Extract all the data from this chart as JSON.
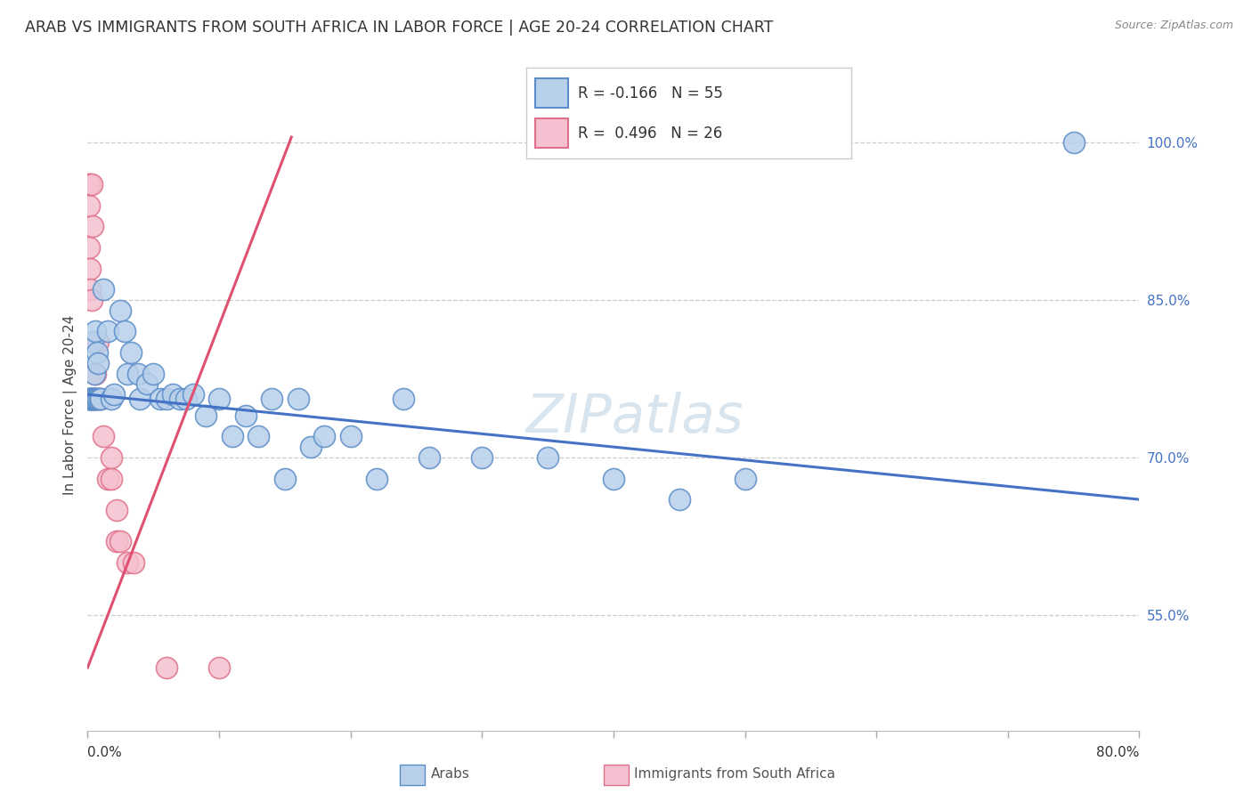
{
  "title": "ARAB VS IMMIGRANTS FROM SOUTH AFRICA IN LABOR FORCE | AGE 20-24 CORRELATION CHART",
  "source": "Source: ZipAtlas.com",
  "ylabel": "In Labor Force | Age 20-24",
  "y_ticks_right": [
    1.0,
    0.85,
    0.7,
    0.55
  ],
  "y_ticks_right_labels": [
    "100.0%",
    "85.0%",
    "70.0%",
    "55.0%"
  ],
  "xlim": [
    0.0,
    0.8
  ],
  "ylim": [
    0.44,
    1.06
  ],
  "legend_blue_r": "-0.166",
  "legend_blue_n": "55",
  "legend_pink_r": "0.496",
  "legend_pink_n": "26",
  "legend_label_blue": "Arabs",
  "legend_label_pink": "Immigrants from South Africa",
  "watermark": "ZIPatlas",
  "blue_fill": "#b8d0ea",
  "pink_fill": "#f5c0cf",
  "blue_edge": "#5b8dc8",
  "pink_edge": "#e0708a",
  "blue_line": "#4472c4",
  "pink_line": "#e05070",
  "blue_dots": [
    [
      0.001,
      0.756
    ],
    [
      0.001,
      0.756
    ],
    [
      0.002,
      0.756
    ],
    [
      0.002,
      0.756
    ],
    [
      0.003,
      0.756
    ],
    [
      0.003,
      0.756
    ],
    [
      0.004,
      0.756
    ],
    [
      0.004,
      0.81
    ],
    [
      0.005,
      0.756
    ],
    [
      0.005,
      0.78
    ],
    [
      0.006,
      0.756
    ],
    [
      0.006,
      0.82
    ],
    [
      0.007,
      0.756
    ],
    [
      0.007,
      0.8
    ],
    [
      0.008,
      0.756
    ],
    [
      0.008,
      0.79
    ],
    [
      0.009,
      0.756
    ],
    [
      0.01,
      0.756
    ],
    [
      0.012,
      0.86
    ],
    [
      0.015,
      0.82
    ],
    [
      0.018,
      0.756
    ],
    [
      0.02,
      0.76
    ],
    [
      0.025,
      0.84
    ],
    [
      0.028,
      0.82
    ],
    [
      0.03,
      0.78
    ],
    [
      0.033,
      0.8
    ],
    [
      0.038,
      0.78
    ],
    [
      0.04,
      0.756
    ],
    [
      0.045,
      0.77
    ],
    [
      0.05,
      0.78
    ],
    [
      0.055,
      0.756
    ],
    [
      0.06,
      0.756
    ],
    [
      0.065,
      0.76
    ],
    [
      0.07,
      0.756
    ],
    [
      0.075,
      0.756
    ],
    [
      0.08,
      0.76
    ],
    [
      0.09,
      0.74
    ],
    [
      0.1,
      0.756
    ],
    [
      0.11,
      0.72
    ],
    [
      0.12,
      0.74
    ],
    [
      0.13,
      0.72
    ],
    [
      0.14,
      0.756
    ],
    [
      0.15,
      0.68
    ],
    [
      0.16,
      0.756
    ],
    [
      0.17,
      0.71
    ],
    [
      0.18,
      0.72
    ],
    [
      0.2,
      0.72
    ],
    [
      0.22,
      0.68
    ],
    [
      0.24,
      0.756
    ],
    [
      0.26,
      0.7
    ],
    [
      0.3,
      0.7
    ],
    [
      0.35,
      0.7
    ],
    [
      0.4,
      0.68
    ],
    [
      0.45,
      0.66
    ],
    [
      0.5,
      0.68
    ],
    [
      0.75,
      1.0
    ]
  ],
  "pink_dots": [
    [
      0.001,
      0.96
    ],
    [
      0.001,
      0.94
    ],
    [
      0.001,
      0.9
    ],
    [
      0.002,
      0.96
    ],
    [
      0.002,
      0.88
    ],
    [
      0.002,
      0.86
    ],
    [
      0.003,
      0.96
    ],
    [
      0.003,
      0.85
    ],
    [
      0.004,
      0.92
    ],
    [
      0.005,
      0.756
    ],
    [
      0.005,
      0.756
    ],
    [
      0.006,
      0.78
    ],
    [
      0.006,
      0.756
    ],
    [
      0.008,
      0.81
    ],
    [
      0.01,
      0.756
    ],
    [
      0.012,
      0.72
    ],
    [
      0.015,
      0.68
    ],
    [
      0.018,
      0.7
    ],
    [
      0.018,
      0.68
    ],
    [
      0.022,
      0.62
    ],
    [
      0.022,
      0.65
    ],
    [
      0.025,
      0.62
    ],
    [
      0.03,
      0.6
    ],
    [
      0.035,
      0.6
    ],
    [
      0.06,
      0.5
    ],
    [
      0.1,
      0.5
    ]
  ],
  "blue_line_x": [
    0.0,
    0.8
  ],
  "blue_line_y": [
    0.76,
    0.66
  ],
  "pink_line_x": [
    0.0,
    0.155
  ],
  "pink_line_y": [
    0.5,
    1.005
  ]
}
